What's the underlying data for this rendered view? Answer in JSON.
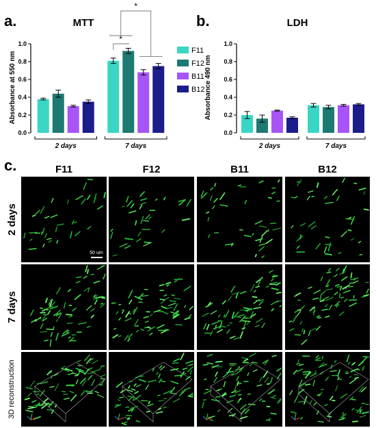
{
  "panels": {
    "a": "a.",
    "b": "b.",
    "c": "c."
  },
  "chart_data": [
    {
      "type": "bar",
      "title": "MTT",
      "ylabel": "Absorbance at 550 nm",
      "ylim": [
        0,
        1.0
      ],
      "yticks": [
        "0.0",
        "0.2",
        "0.4",
        "0.6",
        "0.8",
        "1.0"
      ],
      "groups": [
        "2 days",
        "7 days"
      ],
      "series": [
        {
          "name": "F11",
          "color": "#3ad6c4",
          "values": [
            0.38,
            0.81
          ],
          "errors": [
            0.01,
            0.03
          ]
        },
        {
          "name": "F12",
          "color": "#1c7a73",
          "values": [
            0.44,
            0.92
          ],
          "errors": [
            0.04,
            0.03
          ]
        },
        {
          "name": "B11",
          "color": "#a855f7",
          "values": [
            0.3,
            0.68
          ],
          "errors": [
            0.01,
            0.03
          ]
        },
        {
          "name": "B12",
          "color": "#1c1c8a",
          "values": [
            0.35,
            0.75
          ],
          "errors": [
            0.02,
            0.03
          ]
        }
      ],
      "significance": [
        "*",
        "*"
      ],
      "legend": "right"
    },
    {
      "type": "bar",
      "title": "LDH",
      "ylabel": "Absorbance 490 nm",
      "ylim": [
        0,
        1.0
      ],
      "yticks": [
        "0.0",
        "0.2",
        "0.4",
        "0.6",
        "0.8",
        "1.0"
      ],
      "groups": [
        "2 days",
        "7 days"
      ],
      "series": [
        {
          "name": "F11",
          "color": "#3ad6c4",
          "values": [
            0.2,
            0.31
          ],
          "errors": [
            0.04,
            0.02
          ]
        },
        {
          "name": "F12",
          "color": "#1c7a73",
          "values": [
            0.16,
            0.29
          ],
          "errors": [
            0.04,
            0.02
          ]
        },
        {
          "name": "B11",
          "color": "#a855f7",
          "values": [
            0.25,
            0.31
          ],
          "errors": [
            0.005,
            0.01
          ]
        },
        {
          "name": "B12",
          "color": "#1c1c8a",
          "values": [
            0.17,
            0.32
          ],
          "errors": [
            0.01,
            0.01
          ]
        }
      ]
    }
  ],
  "micrographs": {
    "columns": [
      "F11",
      "F12",
      "B11",
      "B12"
    ],
    "rows": [
      "2 days",
      "7 days",
      "3D reconstruction"
    ],
    "scale_bar": "50 um"
  }
}
